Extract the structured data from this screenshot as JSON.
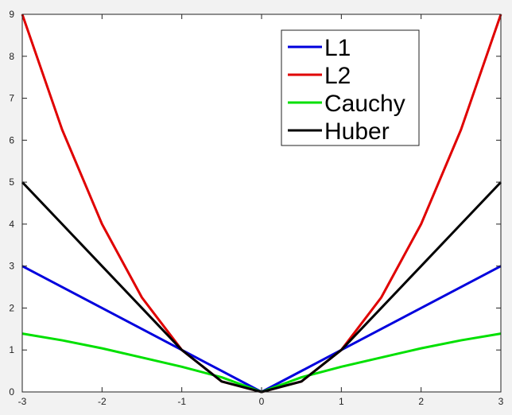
{
  "chart_data": {
    "type": "line",
    "title": "",
    "xlabel": "",
    "ylabel": "",
    "xlim": [
      -3,
      3
    ],
    "ylim": [
      0,
      9
    ],
    "xticks": [
      -3,
      -2,
      -1,
      0,
      1,
      2,
      3
    ],
    "yticks": [
      0,
      1,
      2,
      3,
      4,
      5,
      6,
      7,
      8,
      9
    ],
    "x": [
      -3,
      -2.5,
      -2,
      -1.5,
      -1,
      -0.5,
      0,
      0.5,
      1,
      1.5,
      2,
      2.5,
      3
    ],
    "series": [
      {
        "name": "L1",
        "color": "#0000dd",
        "values": [
          3,
          2.5,
          2,
          1.5,
          1,
          0.5,
          0,
          0.5,
          1,
          1.5,
          2,
          2.5,
          3
        ]
      },
      {
        "name": "L2",
        "color": "#e00000",
        "values": [
          9,
          6.25,
          4,
          2.25,
          1,
          0.25,
          0,
          0.25,
          1,
          2.25,
          4,
          6.25,
          9
        ]
      },
      {
        "name": "Cauchy",
        "color": "#00e000",
        "values": [
          1.39,
          1.23,
          1.04,
          0.82,
          0.6,
          0.35,
          0,
          0.35,
          0.6,
          0.82,
          1.04,
          1.23,
          1.39
        ]
      },
      {
        "name": "Huber",
        "color": "#000000",
        "values": [
          5,
          4,
          3,
          2,
          1,
          0.25,
          0,
          0.25,
          1,
          2,
          3,
          4,
          5
        ]
      }
    ],
    "grid": false,
    "legend": "top-right"
  }
}
